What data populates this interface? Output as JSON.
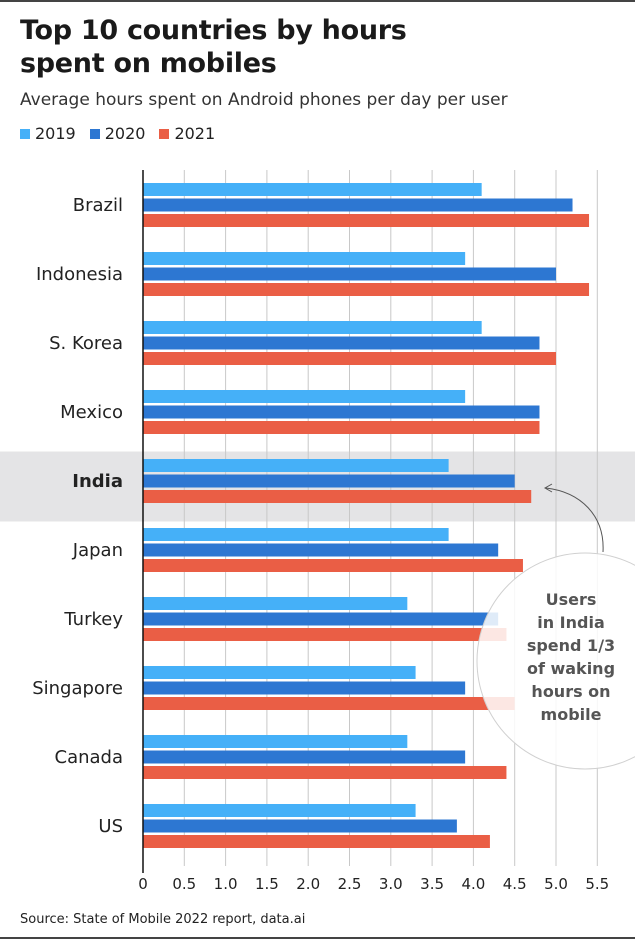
{
  "chart_data": {
    "type": "bar",
    "orientation": "horizontal",
    "title": "Top 10 countries by hours spent on mobiles",
    "subtitle": "Average hours spent on Android phones per day per user",
    "categories": [
      "Brazil",
      "Indonesia",
      "S. Korea",
      "Mexico",
      "India",
      "Japan",
      "Turkey",
      "Singapore",
      "Canada",
      "US"
    ],
    "highlight": "India",
    "series": [
      {
        "name": "2019",
        "color": "#45b0f8",
        "values": [
          4.1,
          3.9,
          4.1,
          3.9,
          3.7,
          3.7,
          3.2,
          3.3,
          3.2,
          3.3
        ]
      },
      {
        "name": "2020",
        "color": "#2d77d2",
        "values": [
          5.2,
          5.0,
          4.8,
          4.8,
          4.5,
          4.3,
          4.3,
          3.9,
          3.9,
          3.8
        ]
      },
      {
        "name": "2021",
        "color": "#ea5e45",
        "values": [
          5.4,
          5.4,
          5.0,
          4.8,
          4.7,
          4.6,
          4.4,
          4.5,
          4.4,
          4.2
        ]
      }
    ],
    "xlim": [
      0,
      5.5
    ],
    "xticks": [
      "0",
      "0.5",
      "1.0",
      "1.5",
      "2.0",
      "2.5",
      "3.0",
      "3.5",
      "4.0",
      "4.5",
      "5.0",
      "5.5"
    ],
    "grid": true,
    "legend_position": "top-left",
    "annotation": [
      "Users",
      "in India",
      "spend 1/3",
      "of waking",
      "hours on",
      "mobile"
    ]
  },
  "source": "Source: State of Mobile 2022 report, data.ai"
}
